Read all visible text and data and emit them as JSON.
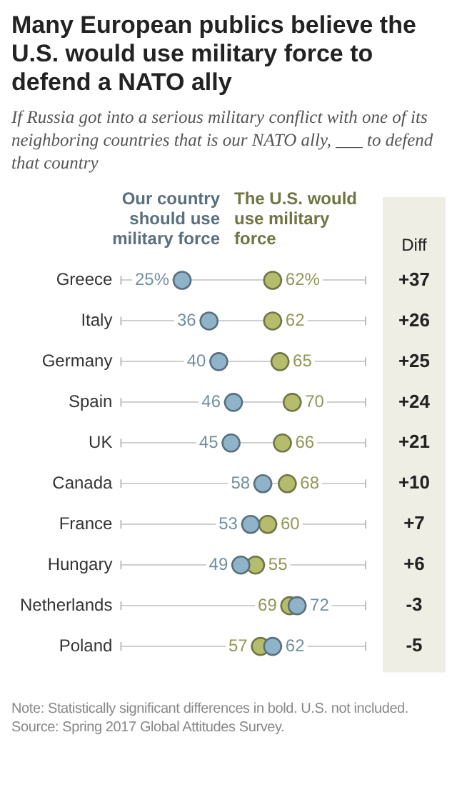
{
  "chart_data": {
    "type": "scatter",
    "orientation": "horizontal",
    "title": "Many European publics believe the U.S. would use military force to defend a NATO ally",
    "subtitle": "If Russia got into a serious military conflict with one of its neighboring countries that is our NATO ally, ___ to defend that country",
    "categories": [
      "Greece",
      "Italy",
      "Germany",
      "Spain",
      "UK",
      "Canada",
      "France",
      "Hungary",
      "Netherlands",
      "Poland"
    ],
    "series": [
      {
        "name": "Our country should use military force",
        "color": "#8fb3c9",
        "values": [
          25,
          36,
          40,
          46,
          45,
          58,
          53,
          49,
          72,
          62
        ],
        "value_labels": [
          "25%",
          "36",
          "40",
          "46",
          "45",
          "58",
          "53",
          "49",
          "72",
          "62"
        ]
      },
      {
        "name": "The U.S. would use military force",
        "color": "#b5bd6c",
        "values": [
          62,
          62,
          65,
          70,
          66,
          68,
          60,
          55,
          69,
          57
        ],
        "value_labels": [
          "62%",
          "62",
          "65",
          "70",
          "66",
          "68",
          "60",
          "55",
          "69",
          "57"
        ]
      }
    ],
    "xlim": [
      0,
      100
    ],
    "tick_labels": "y",
    "grid": "y",
    "marker": "circle",
    "legend": "top",
    "annotations": [
      "Diff",
      "+37",
      "+26",
      "+25",
      "+24",
      "+21",
      "+10",
      "+7",
      "+6",
      "-3",
      "-5",
      "Note: Statistically significant differences in bold. U.S. not included.",
      "Source: Spring 2017 Global Attitudes Survey."
    ]
  }
}
